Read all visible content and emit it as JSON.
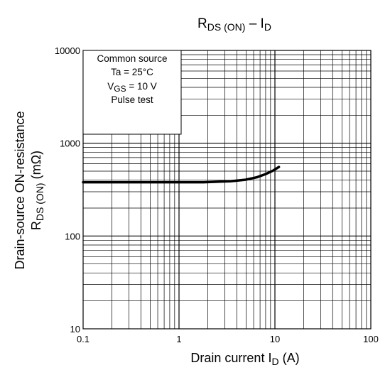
{
  "chart_data": {
    "type": "line",
    "title": {
      "main": "R",
      "sub": "DS (ON)",
      "mid": " – I",
      "sub2": "D"
    },
    "x_axis": {
      "scale": "log",
      "range": [
        0.1,
        100
      ],
      "tick_labels": [
        "0.1",
        "1",
        "10",
        "100"
      ],
      "label": {
        "main": "Drain current  ",
        "var": "I",
        "sub": "D",
        "unit": "  (A)"
      }
    },
    "y_axis": {
      "scale": "log",
      "range": [
        10,
        10000
      ],
      "tick_labels": [
        "10",
        "100",
        "1000",
        "10000"
      ],
      "label_line1": "Drain-source ON-resistance",
      "label_line2": {
        "main": "R",
        "sub": "DS (ON)",
        "unit": "   (mΩ)"
      }
    },
    "grid": true,
    "annotation": {
      "line1": "Common source",
      "line2": "Ta = 25°C",
      "line3": {
        "main": "V",
        "sub": "GS",
        "rest": " = 10 V"
      },
      "line4": "Pulse test"
    },
    "series": [
      {
        "color": "#000000",
        "x": [
          0.1,
          0.5,
          1,
          1.8,
          2.5,
          3.5,
          5,
          6.5,
          8,
          9.5,
          11
        ],
        "y": [
          380,
          380,
          380,
          380,
          385,
          390,
          405,
          430,
          465,
          505,
          555
        ]
      }
    ]
  }
}
